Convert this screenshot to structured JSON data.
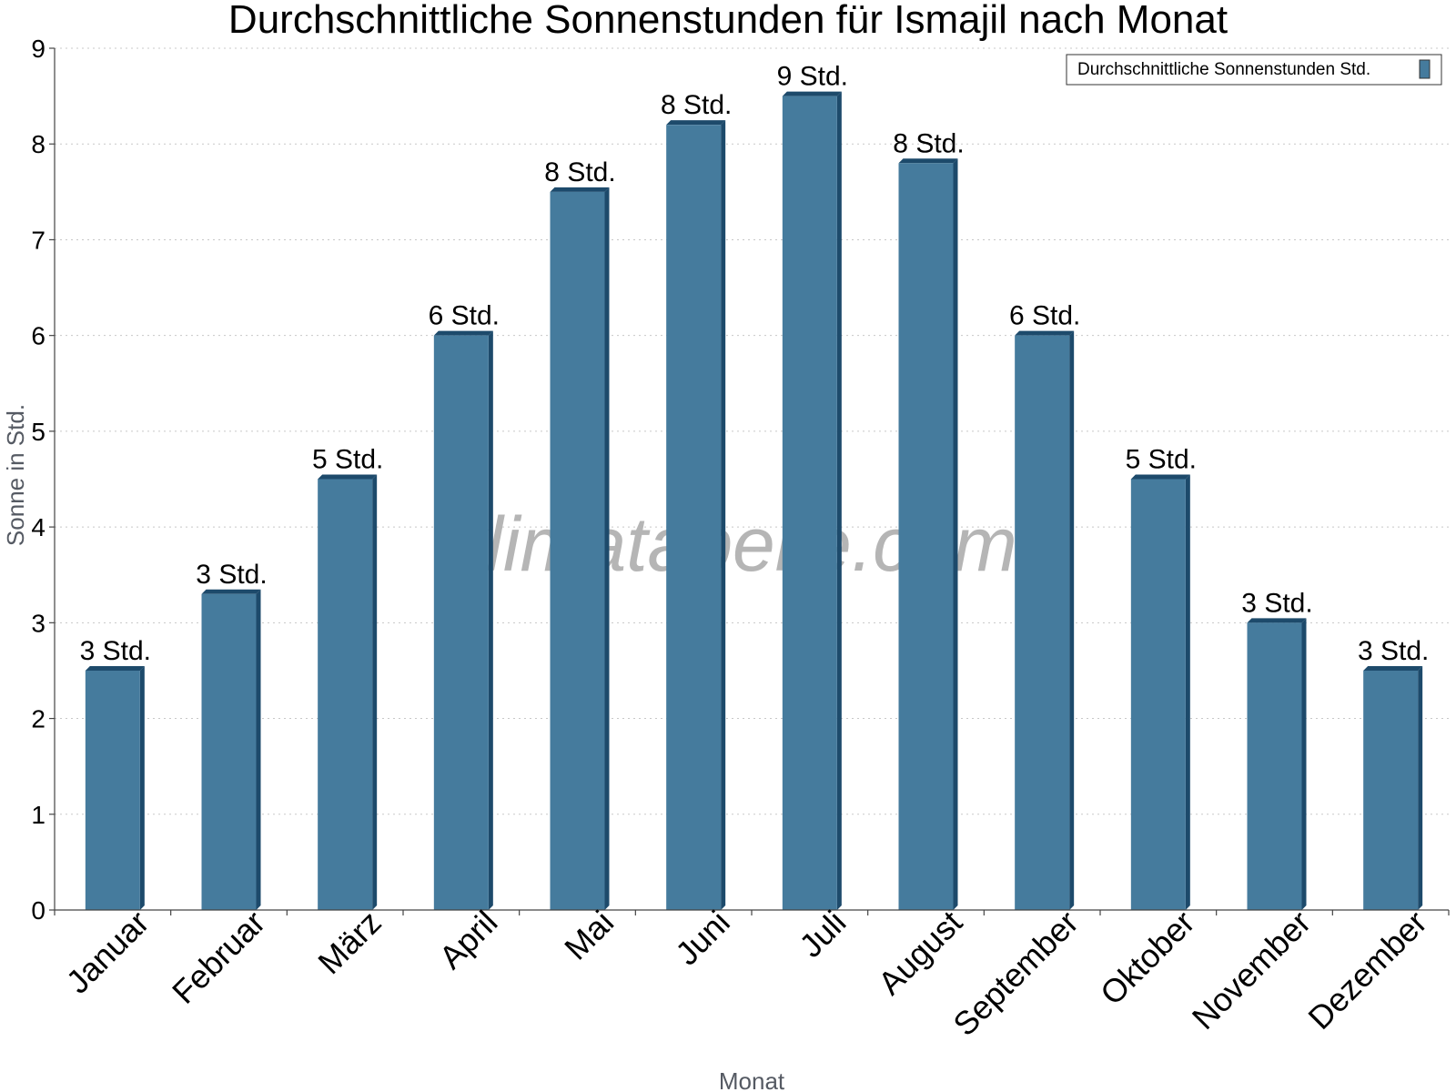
{
  "chart_data": {
    "type": "bar",
    "title": "Durchschnittliche Sonnenstunden für Ismajil nach Monat",
    "xlabel": "Monat",
    "ylabel": "Sonne in Std.",
    "ylim": [
      0,
      9
    ],
    "yticks": [
      0,
      1,
      2,
      3,
      4,
      5,
      6,
      7,
      8,
      9
    ],
    "grid": true,
    "legend_position": "top-right",
    "categories": [
      "Januar",
      "Februar",
      "März",
      "April",
      "Mai",
      "Juni",
      "Juli",
      "August",
      "September",
      "Oktober",
      "November",
      "Dezember"
    ],
    "series": [
      {
        "name": "Durchschnittliche Sonnenstunden Std.",
        "values": [
          2.5,
          3.3,
          4.5,
          6.0,
          7.5,
          8.2,
          8.5,
          7.8,
          6.0,
          4.5,
          3.0,
          2.5
        ],
        "labels": [
          "3 Std.",
          "3 Std.",
          "5 Std.",
          "6 Std.",
          "8 Std.",
          "8 Std.",
          "9 Std.",
          "8 Std.",
          "6 Std.",
          "5 Std.",
          "3 Std.",
          "3 Std."
        ],
        "color": "#457b9d",
        "edge_color": "#1d4a6b"
      }
    ],
    "watermark": "klimatabelle.com"
  }
}
